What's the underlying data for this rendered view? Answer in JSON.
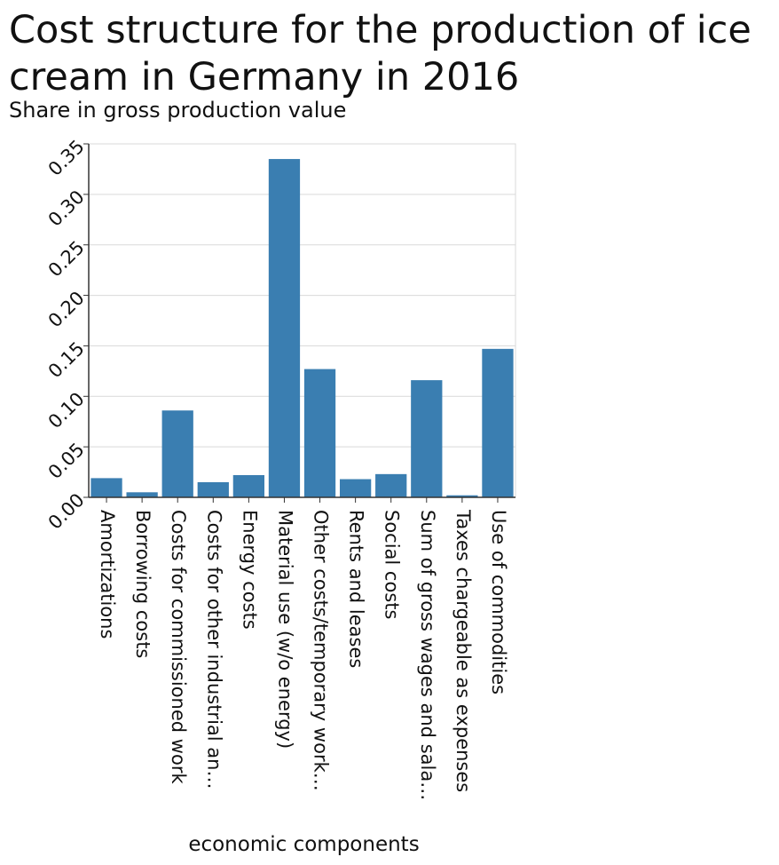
{
  "title": "Cost structure for the production of ice cream in Germany in 2016",
  "subtitle": "Share in gross production value",
  "chart_data": {
    "type": "bar",
    "title": "Cost structure for the production of ice cream in Germany in 2016",
    "ylabel": "Share in gross production value",
    "xlabel": "economic components",
    "categories": [
      "Amortizations",
      "Borrowing costs",
      "Costs for commissioned work",
      "Costs for other industrial an…",
      "Energy costs",
      "Material use (w/o energy)",
      "Other costs/temporary work…",
      "Rents and leases",
      "Social costs",
      "Sum of gross wages and sala…",
      "Taxes chargeable as expenses",
      "Use of commodities"
    ],
    "values": [
      0.019,
      0.005,
      0.086,
      0.015,
      0.022,
      0.335,
      0.127,
      0.018,
      0.023,
      0.116,
      0.002,
      0.147
    ],
    "ylim": [
      0,
      0.35
    ],
    "yticks": [
      "0.00",
      "0.05",
      "0.10",
      "0.15",
      "0.20",
      "0.25",
      "0.30",
      "0.35"
    ],
    "grid": true,
    "bar_color": "#3a7eb1"
  }
}
